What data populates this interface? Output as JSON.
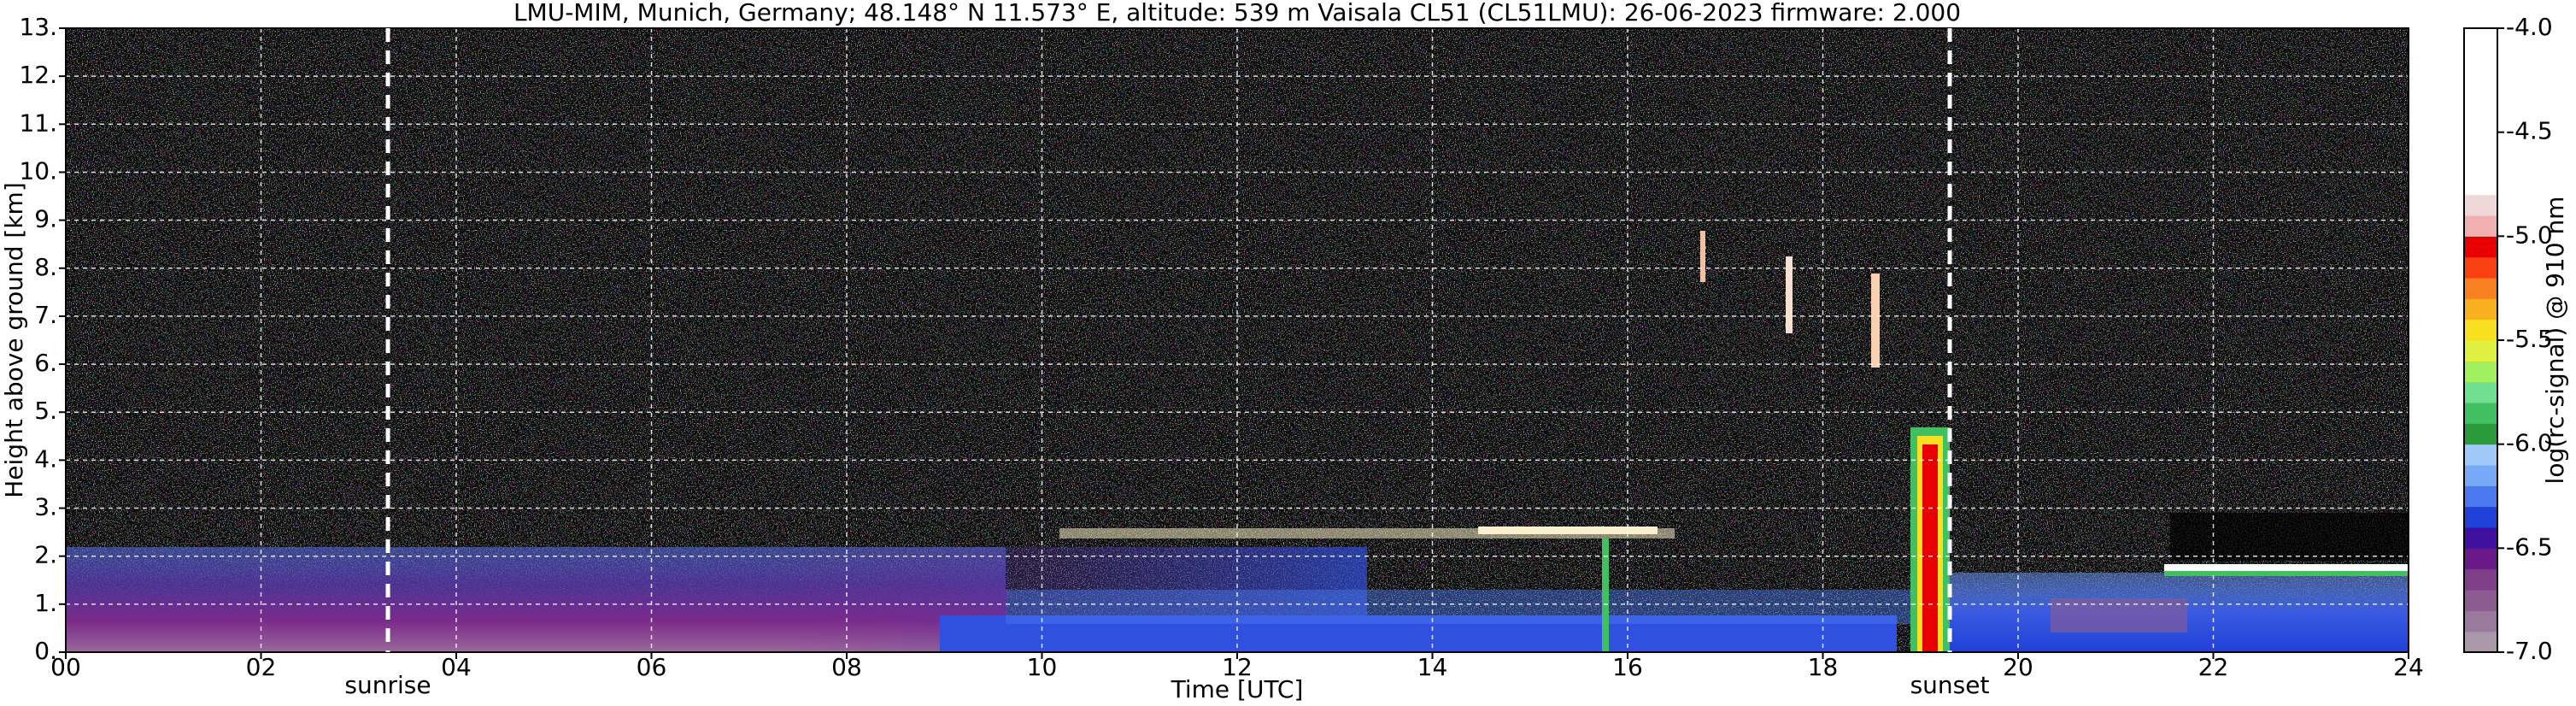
{
  "chart_data": {
    "type": "heatmap",
    "title": "LMU-MIM, Munich, Germany; 48.148° N 11.573° E, altitude: 539 m    Vaisala CL51 (CL51LMU): 26-06-2023    firmware: 2.000",
    "x_label": "Time [UTC]",
    "y_label": "Height above ground [km]",
    "xlim": [
      0,
      24
    ],
    "xticks": [
      {
        "value": 0,
        "label": "00"
      },
      {
        "value": 2,
        "label": "02"
      },
      {
        "value": 4,
        "label": "04"
      },
      {
        "value": 6,
        "label": "06"
      },
      {
        "value": 8,
        "label": "08"
      },
      10,
      12,
      14,
      16,
      18,
      20,
      22,
      24
    ],
    "ylim": [
      0,
      13
    ],
    "yticks": [
      {
        "value": 0,
        "label": "0."
      },
      {
        "value": 1,
        "label": "1."
      },
      {
        "value": 2,
        "label": "2."
      },
      {
        "value": 3,
        "label": "3."
      },
      {
        "value": 4,
        "label": "4."
      },
      {
        "value": 5,
        "label": "5."
      },
      {
        "value": 6,
        "label": "6."
      },
      {
        "value": 7,
        "label": "7."
      },
      {
        "value": 8,
        "label": "8."
      },
      {
        "value": 9,
        "label": "9."
      },
      {
        "value": 10,
        "label": "10."
      },
      {
        "value": 11,
        "label": "11."
      },
      {
        "value": 12,
        "label": "12."
      },
      {
        "value": 13,
        "label": "13."
      }
    ],
    "grid": true,
    "annotations": [
      {
        "text": "sunrise",
        "x": 3.3
      },
      {
        "text": "sunset",
        "x": 19.3
      }
    ],
    "colorbar": {
      "label": "log(rc-signal) @ 910 nm",
      "lim": [
        -7,
        -4
      ],
      "ticks": [
        {
          "value": -4,
          "label": "-4.0"
        },
        -4.5,
        {
          "value": -5,
          "label": "-5.0"
        },
        -5.5,
        {
          "value": -6,
          "label": "-6.0"
        },
        -6.5,
        {
          "value": -7,
          "label": "-7.0"
        }
      ],
      "colors": [
        "#a898a8",
        "#9a7a9c",
        "#8c5c90",
        "#7e3e88",
        "#6a1a88",
        "#4010a0",
        "#2040d8",
        "#4a78f0",
        "#78a8f8",
        "#a0c8f8",
        "#2a9a3a",
        "#40c060",
        "#70e090",
        "#a0f060",
        "#e0f040",
        "#f8e020",
        "#f8b020",
        "#f88020",
        "#f84010",
        "#e80000",
        "#f0b0b0",
        "#f0d8d8",
        "#ffffff",
        "#ffffff",
        "#ffffff",
        "#ffffff",
        "#ffffff",
        "#ffffff",
        "#ffffff",
        "#ffffff"
      ]
    }
  }
}
